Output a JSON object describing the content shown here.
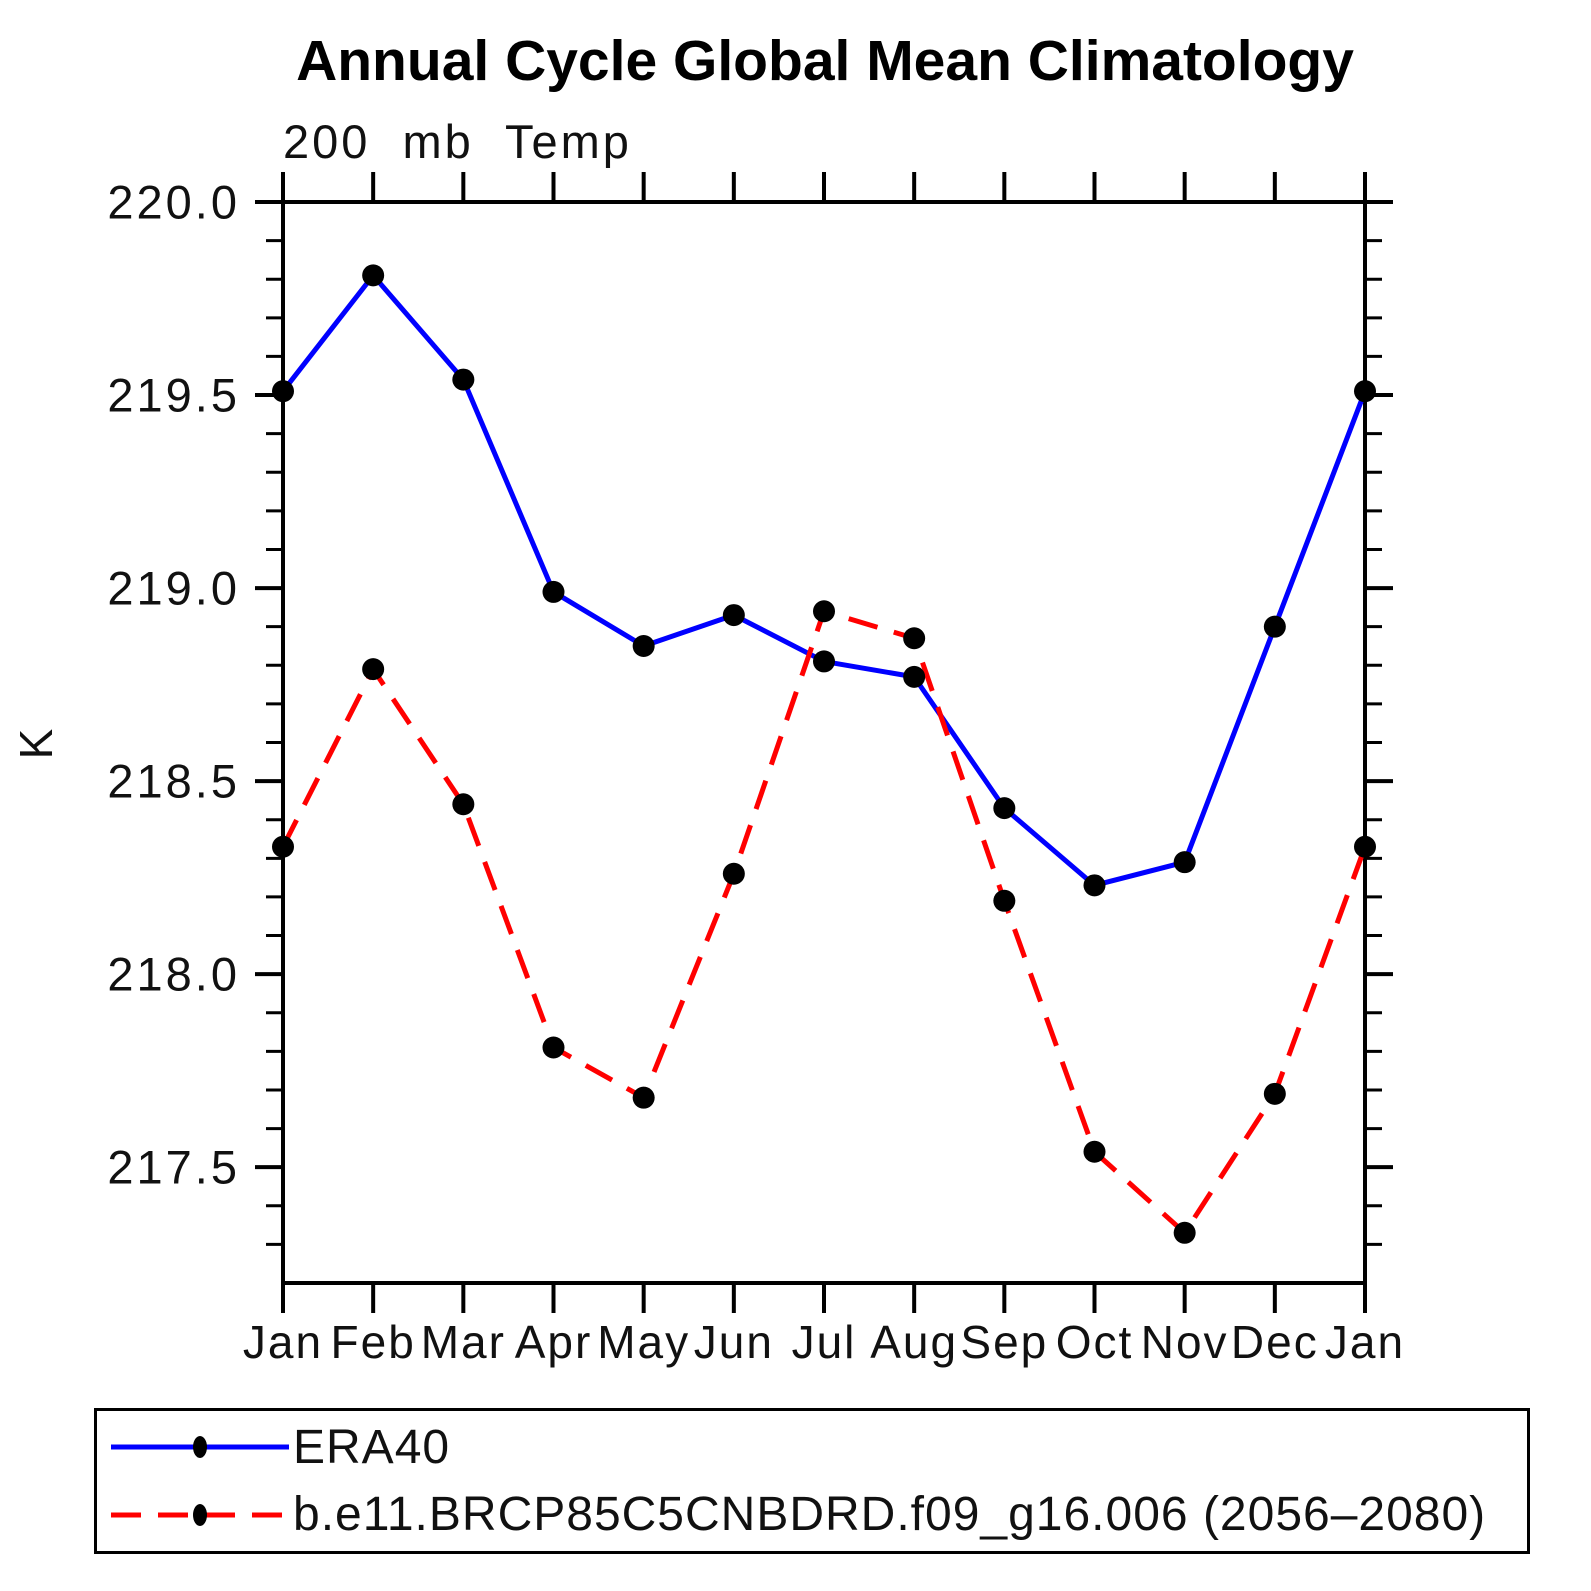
{
  "chart_data": {
    "type": "line",
    "title": "Annual Cycle Global Mean Climatology",
    "subtitle": "200 mb Temp",
    "ylabel": "K",
    "xlabel": "",
    "categories": [
      "Jan",
      "Feb",
      "Mar",
      "Apr",
      "May",
      "Jun",
      "Jul",
      "Aug",
      "Sep",
      "Oct",
      "Nov",
      "Dec",
      "Jan"
    ],
    "ylim": [
      217.2,
      220.0
    ],
    "ytick_major_step": 0.5,
    "ytick_minor_step": 0.1,
    "ytick_labels": [
      "220.0",
      "219.5",
      "219.0",
      "218.5",
      "218.0",
      "217.5"
    ],
    "grid": false,
    "legend_position": "bottom-left-box",
    "marker_color": "#000000",
    "series": [
      {
        "name": "ERA40",
        "color": "#0000ff",
        "style": "solid",
        "values": [
          219.51,
          219.81,
          219.54,
          218.99,
          218.85,
          218.93,
          218.81,
          218.77,
          218.43,
          218.23,
          218.29,
          218.9,
          219.51
        ]
      },
      {
        "name": "b.e11.BRCP85C5CNBDRD.f09_g16.006 (2056–2080)",
        "color": "#ff0000",
        "style": "dashed",
        "values": [
          218.33,
          218.79,
          218.44,
          217.81,
          217.68,
          218.26,
          218.94,
          218.87,
          218.19,
          217.54,
          217.33,
          217.69,
          218.33
        ]
      }
    ]
  }
}
